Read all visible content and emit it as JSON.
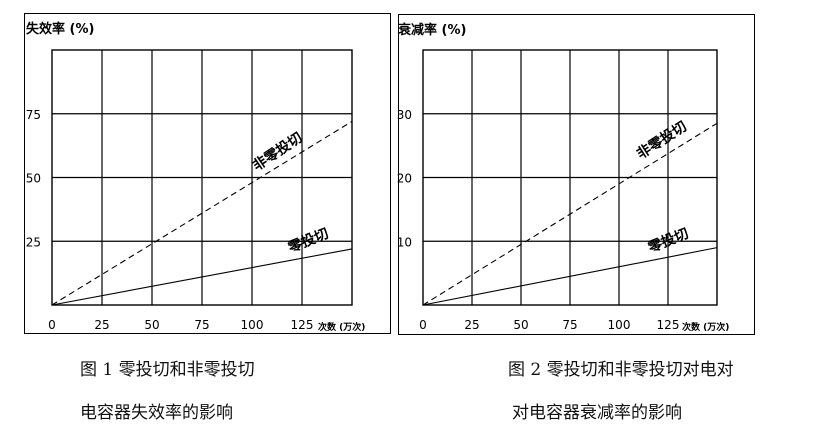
{
  "charts": [
    {
      "chart_data": {
        "type": "line",
        "ylabel": "失效率 (%)",
        "xlabel": "次数 (万次)",
        "xlim": [
          0,
          150
        ],
        "ylim": [
          0,
          100
        ],
        "x_ticks": [
          0,
          25,
          50,
          75,
          100,
          125
        ],
        "x_tick_labels": [
          "0",
          "25",
          "50",
          "75",
          "100",
          "125"
        ],
        "y_ticks": [
          25,
          50,
          75
        ],
        "y_tick_labels": [
          "25",
          "50",
          "75"
        ],
        "grid": true,
        "series": [
          {
            "name": "非零投切",
            "style": "dashed",
            "x": [
              0,
              150
            ],
            "y": [
              0,
              72
            ]
          },
          {
            "name": "零投切",
            "style": "solid",
            "x": [
              0,
              150
            ],
            "y": [
              0,
              22
            ]
          }
        ]
      },
      "caption_line1": "图 1  零投切和非零投切",
      "caption_line2": "电容器失效率的影响"
    },
    {
      "chart_data": {
        "type": "line",
        "ylabel": "衰减率 (%)",
        "xlabel": "次数 (万次)",
        "xlim": [
          0,
          150
        ],
        "ylim": [
          0,
          40
        ],
        "x_ticks": [
          0,
          25,
          50,
          75,
          100,
          125
        ],
        "x_tick_labels": [
          "0",
          "25",
          "50",
          "75",
          "100",
          "125"
        ],
        "y_ticks": [
          10,
          20,
          30
        ],
        "y_tick_labels": [
          "10",
          "20",
          "30"
        ],
        "grid": true,
        "series": [
          {
            "name": "非零投切",
            "style": "dashed",
            "x": [
              0,
              150
            ],
            "y": [
              0,
              28.5
            ]
          },
          {
            "name": "零投切",
            "style": "solid",
            "x": [
              0,
              150
            ],
            "y": [
              0,
              9
            ]
          }
        ]
      },
      "caption_line1": "图 2  零投切和非零投切对电对",
      "caption_line2": "对电容器衰减率的影响"
    }
  ],
  "colors": {
    "line": "#000000",
    "grid": "#000000"
  }
}
